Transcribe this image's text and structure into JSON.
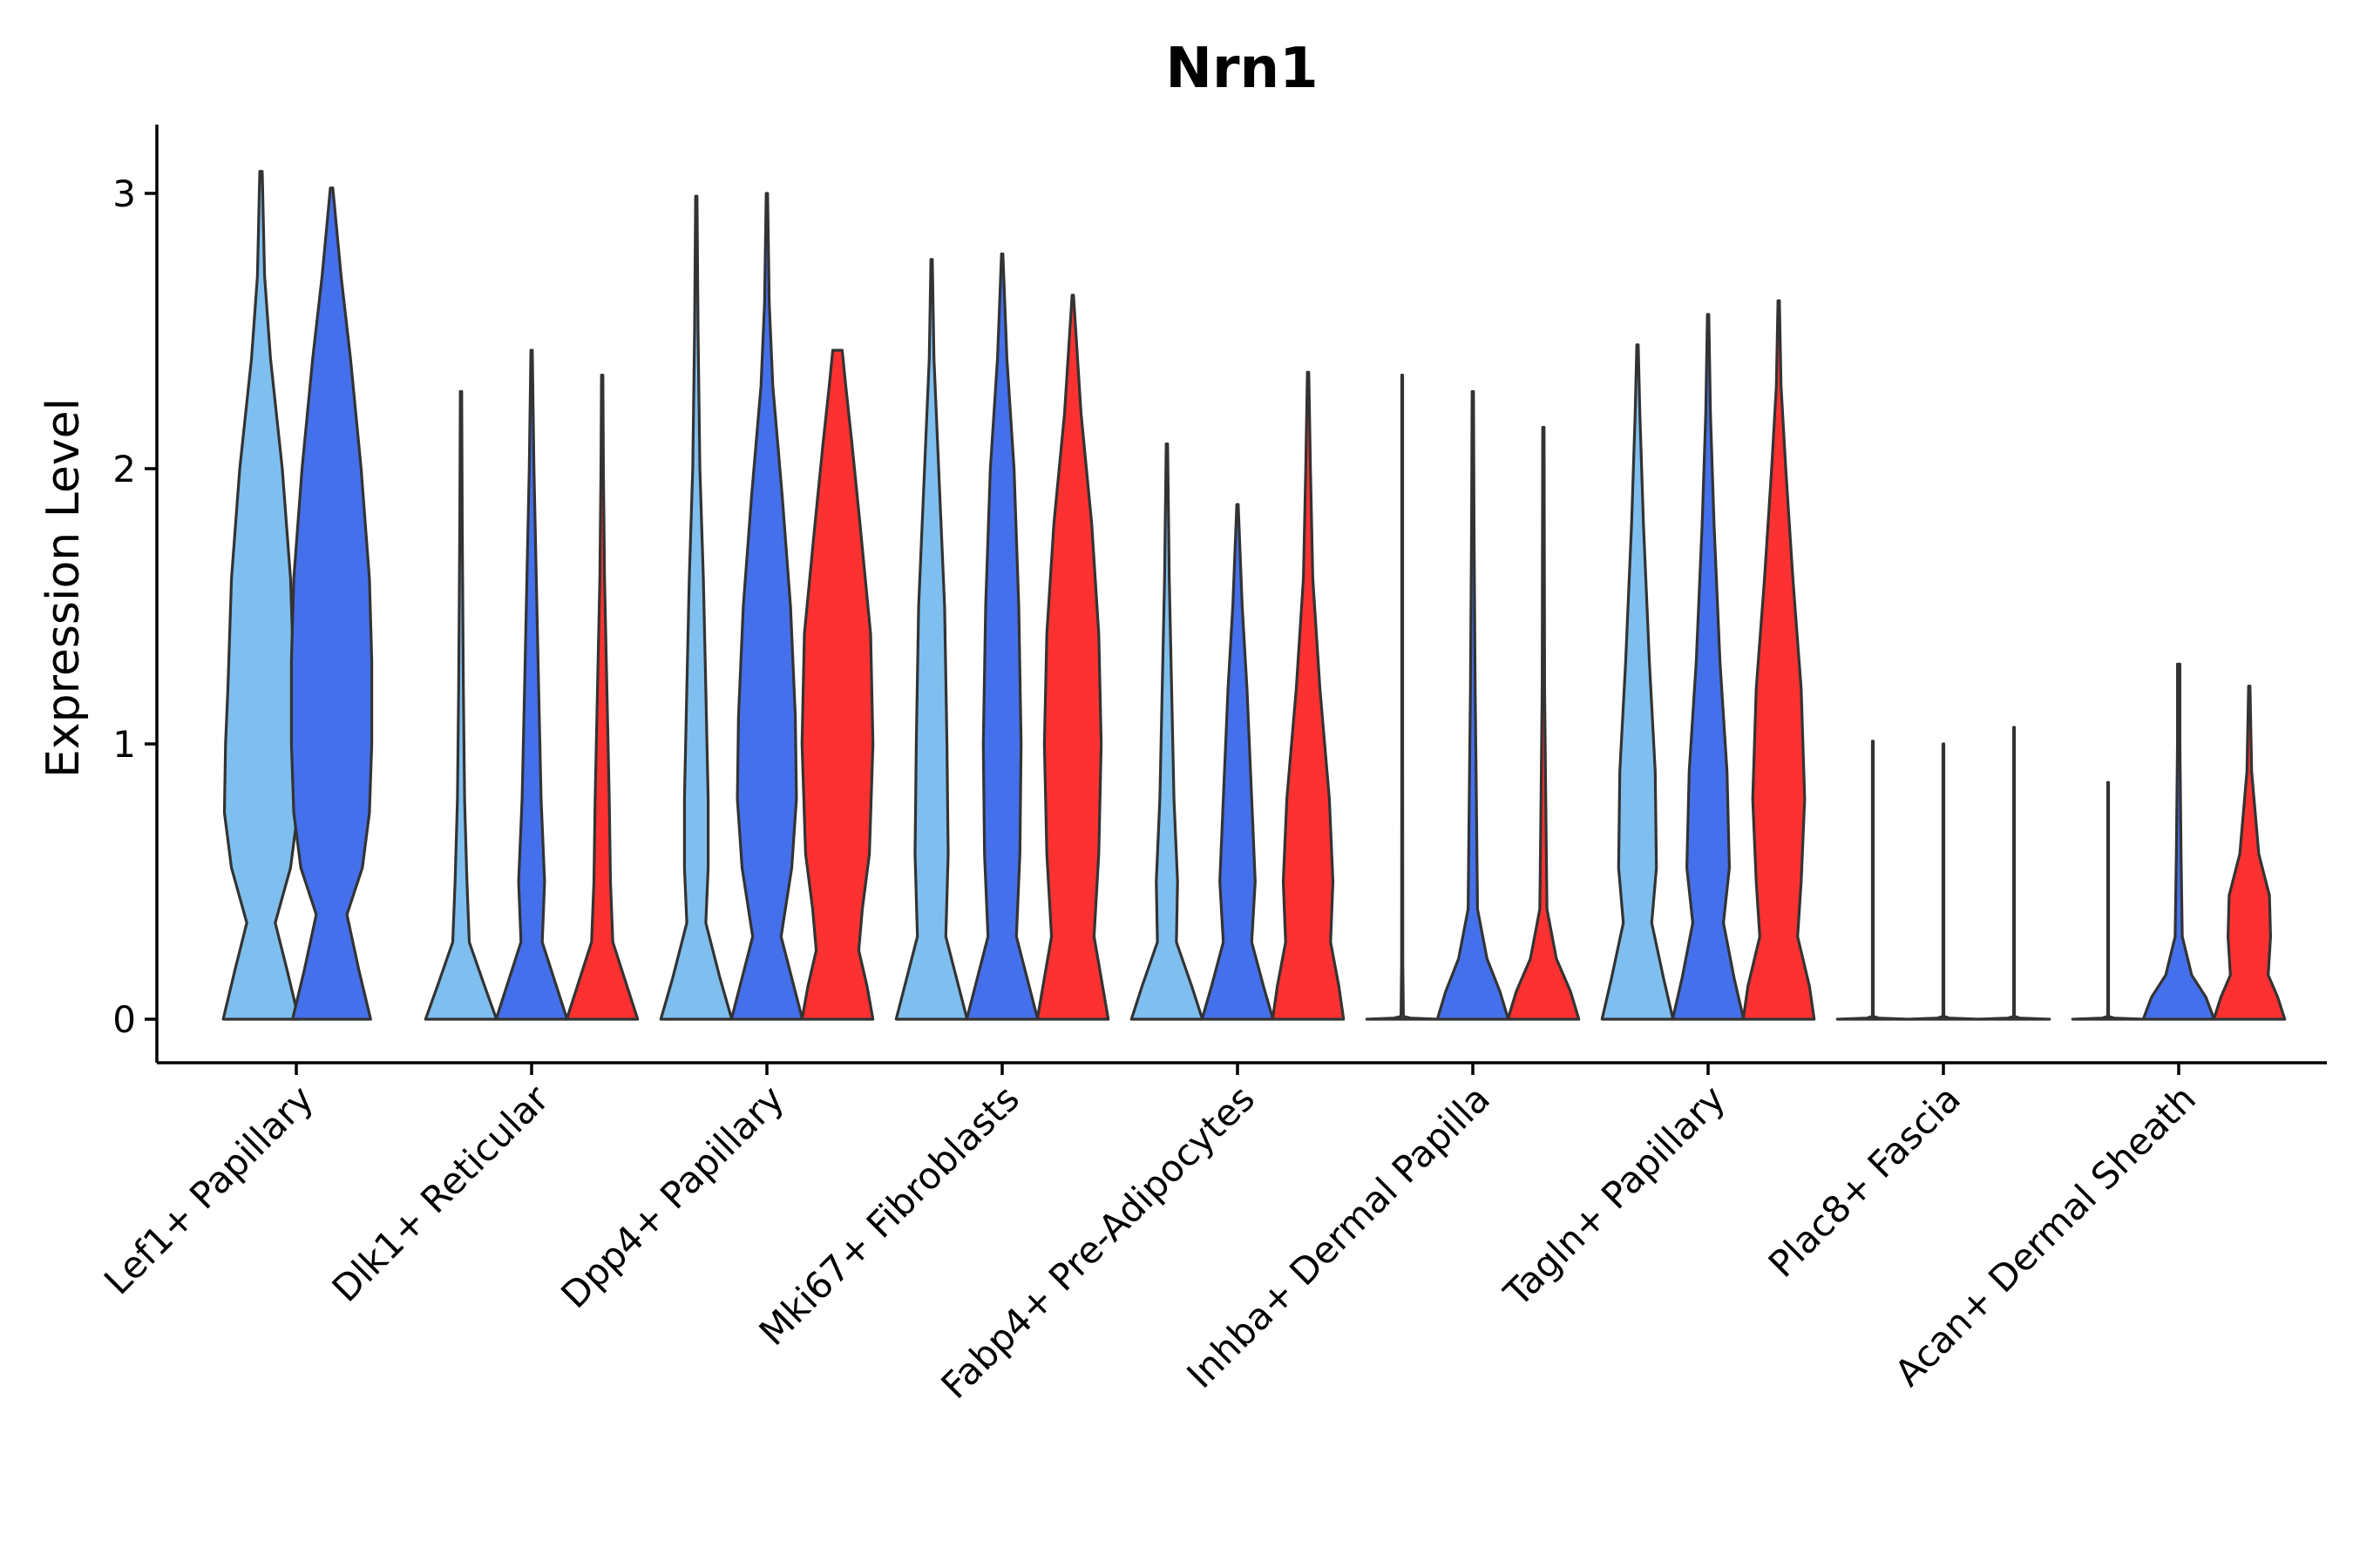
{
  "chart_data": {
    "type": "violin",
    "title": "Nrn1",
    "xlabel": "",
    "ylabel": "Expression Level",
    "ylim": [
      -0.16,
      3.25
    ],
    "yticks": [
      0,
      1,
      2,
      3
    ],
    "groups": [
      "Lef1+ Papillary",
      "Dlk1+ Reticular",
      "Dpp4+ Papillary",
      "Mki67+ Fibroblasts",
      "Fabp4+ Pre-Adipocytes",
      "Inhba+ Dermal Papilla",
      "Tagln+ Papillary",
      "Plac8+ Fascia",
      "Acan+ Dermal Sheath"
    ],
    "series_colors": [
      "#7fbfef",
      "#4570eb",
      "#fd3131"
    ],
    "violins": [
      [
        {
          "max": 3.08,
          "profile": [
            [
              0,
              0.32
            ],
            [
              0.18,
              0.22
            ],
            [
              0.35,
              0.12
            ],
            [
              0.55,
              0.25
            ],
            [
              0.75,
              0.31
            ],
            [
              1.0,
              0.3
            ],
            [
              1.2,
              0.28
            ],
            [
              1.6,
              0.25
            ],
            [
              2.0,
              0.18
            ],
            [
              2.4,
              0.08
            ],
            [
              2.7,
              0.03
            ],
            [
              3.08,
              0.01
            ]
          ]
        },
        {
          "max": 3.02,
          "profile": [
            [
              0,
              0.33
            ],
            [
              0.18,
              0.23
            ],
            [
              0.38,
              0.13
            ],
            [
              0.55,
              0.26
            ],
            [
              0.75,
              0.32
            ],
            [
              1.0,
              0.34
            ],
            [
              1.3,
              0.34
            ],
            [
              1.6,
              0.32
            ],
            [
              2.0,
              0.25
            ],
            [
              2.4,
              0.16
            ],
            [
              2.7,
              0.08
            ],
            [
              3.02,
              0.01
            ]
          ]
        },
        null
      ],
      [
        {
          "max": 2.28,
          "profile": [
            [
              0,
              0.3
            ],
            [
              0.12,
              0.2
            ],
            [
              0.28,
              0.07
            ],
            [
              0.5,
              0.05
            ],
            [
              0.8,
              0.03
            ],
            [
              1.2,
              0.02
            ],
            [
              1.8,
              0.01
            ],
            [
              2.28,
              0.006
            ]
          ]
        },
        {
          "max": 2.43,
          "profile": [
            [
              0,
              0.3
            ],
            [
              0.12,
              0.21
            ],
            [
              0.28,
              0.09
            ],
            [
              0.5,
              0.11
            ],
            [
              0.8,
              0.08
            ],
            [
              1.2,
              0.06
            ],
            [
              1.6,
              0.04
            ],
            [
              2.0,
              0.02
            ],
            [
              2.43,
              0.006
            ]
          ]
        },
        {
          "max": 2.34,
          "profile": [
            [
              0,
              0.3
            ],
            [
              0.12,
              0.21
            ],
            [
              0.28,
              0.09
            ],
            [
              0.5,
              0.07
            ],
            [
              0.8,
              0.06
            ],
            [
              1.2,
              0.04
            ],
            [
              1.6,
              0.02
            ],
            [
              2.0,
              0.01
            ],
            [
              2.34,
              0.006
            ]
          ]
        }
      ],
      [
        {
          "max": 2.99,
          "profile": [
            [
              0,
              0.3
            ],
            [
              0.15,
              0.2
            ],
            [
              0.35,
              0.08
            ],
            [
              0.55,
              0.1
            ],
            [
              0.8,
              0.1
            ],
            [
              1.2,
              0.08
            ],
            [
              1.6,
              0.06
            ],
            [
              2.0,
              0.03
            ],
            [
              2.5,
              0.015
            ],
            [
              2.99,
              0.006
            ]
          ]
        },
        {
          "max": 3.0,
          "profile": [
            [
              0,
              0.3
            ],
            [
              0.15,
              0.21
            ],
            [
              0.3,
              0.12
            ],
            [
              0.55,
              0.21
            ],
            [
              0.8,
              0.25
            ],
            [
              1.1,
              0.24
            ],
            [
              1.5,
              0.2
            ],
            [
              1.9,
              0.13
            ],
            [
              2.3,
              0.05
            ],
            [
              2.6,
              0.02
            ],
            [
              3.0,
              0.006
            ]
          ]
        },
        {
          "max": 2.43,
          "profile": [
            [
              0,
              0.3
            ],
            [
              0.12,
              0.25
            ],
            [
              0.25,
              0.18
            ],
            [
              0.4,
              0.21
            ],
            [
              0.6,
              0.27
            ],
            [
              1.0,
              0.3
            ],
            [
              1.4,
              0.28
            ],
            [
              1.8,
              0.19
            ],
            [
              2.1,
              0.12
            ],
            [
              2.3,
              0.07
            ],
            [
              2.43,
              0.04
            ]
          ]
        }
      ],
      [
        {
          "max": 2.76,
          "profile": [
            [
              0,
              0.3
            ],
            [
              0.15,
              0.21
            ],
            [
              0.3,
              0.12
            ],
            [
              0.6,
              0.14
            ],
            [
              1.0,
              0.13
            ],
            [
              1.5,
              0.11
            ],
            [
              2.0,
              0.06
            ],
            [
              2.4,
              0.02
            ],
            [
              2.76,
              0.006
            ]
          ]
        },
        {
          "max": 2.78,
          "profile": [
            [
              0,
              0.3
            ],
            [
              0.15,
              0.21
            ],
            [
              0.3,
              0.12
            ],
            [
              0.6,
              0.15
            ],
            [
              1.0,
              0.16
            ],
            [
              1.5,
              0.14
            ],
            [
              2.0,
              0.1
            ],
            [
              2.4,
              0.04
            ],
            [
              2.78,
              0.006
            ]
          ]
        },
        {
          "max": 2.63,
          "profile": [
            [
              0,
              0.3
            ],
            [
              0.15,
              0.24
            ],
            [
              0.3,
              0.18
            ],
            [
              0.6,
              0.22
            ],
            [
              1.0,
              0.24
            ],
            [
              1.4,
              0.22
            ],
            [
              1.8,
              0.16
            ],
            [
              2.2,
              0.07
            ],
            [
              2.63,
              0.006
            ]
          ]
        }
      ],
      [
        {
          "max": 2.09,
          "profile": [
            [
              0,
              0.3
            ],
            [
              0.12,
              0.21
            ],
            [
              0.28,
              0.08
            ],
            [
              0.5,
              0.09
            ],
            [
              0.8,
              0.06
            ],
            [
              1.2,
              0.04
            ],
            [
              1.6,
              0.02
            ],
            [
              2.09,
              0.006
            ]
          ]
        },
        {
          "max": 1.87,
          "profile": [
            [
              0,
              0.3
            ],
            [
              0.12,
              0.22
            ],
            [
              0.28,
              0.12
            ],
            [
              0.5,
              0.15
            ],
            [
              0.8,
              0.12
            ],
            [
              1.2,
              0.08
            ],
            [
              1.5,
              0.04
            ],
            [
              1.87,
              0.006
            ]
          ]
        },
        {
          "max": 2.35,
          "profile": [
            [
              0,
              0.3
            ],
            [
              0.12,
              0.26
            ],
            [
              0.28,
              0.19
            ],
            [
              0.5,
              0.21
            ],
            [
              0.8,
              0.18
            ],
            [
              1.2,
              0.1
            ],
            [
              1.6,
              0.04
            ],
            [
              2.0,
              0.02
            ],
            [
              2.35,
              0.006
            ]
          ]
        }
      ],
      [
        {
          "max": 2.34,
          "profile": [
            [
              0,
              0.3
            ],
            [
              0.004,
              0.07
            ],
            [
              0.01,
              0.01
            ],
            [
              0.2,
              0.005
            ],
            [
              1.0,
              0.004
            ],
            [
              2.34,
              0.004
            ]
          ]
        },
        {
          "max": 2.28,
          "profile": [
            [
              0,
              0.3
            ],
            [
              0.1,
              0.23
            ],
            [
              0.22,
              0.12
            ],
            [
              0.4,
              0.04
            ],
            [
              0.8,
              0.03
            ],
            [
              1.2,
              0.02
            ],
            [
              1.8,
              0.01
            ],
            [
              2.28,
              0.006
            ]
          ]
        },
        {
          "max": 2.15,
          "profile": [
            [
              0,
              0.3
            ],
            [
              0.1,
              0.23
            ],
            [
              0.22,
              0.11
            ],
            [
              0.4,
              0.03
            ],
            [
              0.8,
              0.02
            ],
            [
              1.2,
              0.01
            ],
            [
              2.15,
              0.006
            ]
          ]
        }
      ],
      [
        {
          "max": 2.45,
          "profile": [
            [
              0,
              0.3
            ],
            [
              0.15,
              0.22
            ],
            [
              0.35,
              0.12
            ],
            [
              0.55,
              0.16
            ],
            [
              0.9,
              0.15
            ],
            [
              1.3,
              0.1
            ],
            [
              1.8,
              0.05
            ],
            [
              2.2,
              0.02
            ],
            [
              2.45,
              0.006
            ]
          ]
        },
        {
          "max": 2.56,
          "profile": [
            [
              0,
              0.3
            ],
            [
              0.15,
              0.22
            ],
            [
              0.35,
              0.13
            ],
            [
              0.55,
              0.18
            ],
            [
              0.9,
              0.16
            ],
            [
              1.3,
              0.1
            ],
            [
              1.8,
              0.05
            ],
            [
              2.2,
              0.02
            ],
            [
              2.56,
              0.006
            ]
          ]
        },
        {
          "max": 2.61,
          "profile": [
            [
              0,
              0.3
            ],
            [
              0.12,
              0.26
            ],
            [
              0.3,
              0.16
            ],
            [
              0.5,
              0.19
            ],
            [
              0.8,
              0.22
            ],
            [
              1.2,
              0.19
            ],
            [
              1.6,
              0.12
            ],
            [
              2.0,
              0.06
            ],
            [
              2.3,
              0.02
            ],
            [
              2.61,
              0.006
            ]
          ]
        }
      ],
      [
        {
          "max": 1.01,
          "profile": [
            [
              0,
              0.3
            ],
            [
              0.004,
              0.05
            ],
            [
              0.01,
              0.004
            ],
            [
              1.01,
              0.004
            ]
          ]
        },
        {
          "max": 1.0,
          "profile": [
            [
              0,
              0.3
            ],
            [
              0.004,
              0.05
            ],
            [
              0.01,
              0.004
            ],
            [
              1.0,
              0.004
            ]
          ]
        },
        {
          "max": 1.06,
          "profile": [
            [
              0,
              0.3
            ],
            [
              0.004,
              0.05
            ],
            [
              0.01,
              0.004
            ],
            [
              1.06,
              0.004
            ]
          ]
        }
      ],
      [
        {
          "max": 0.86,
          "profile": [
            [
              0,
              0.3
            ],
            [
              0.004,
              0.05
            ],
            [
              0.01,
              0.004
            ],
            [
              0.86,
              0.004
            ]
          ]
        },
        {
          "max": 1.29,
          "profile": [
            [
              0,
              0.3
            ],
            [
              0.08,
              0.23
            ],
            [
              0.16,
              0.11
            ],
            [
              0.3,
              0.03
            ],
            [
              0.6,
              0.02
            ],
            [
              1.0,
              0.01
            ],
            [
              1.29,
              0.01
            ]
          ]
        },
        {
          "max": 1.21,
          "profile": [
            [
              0,
              0.3
            ],
            [
              0.08,
              0.24
            ],
            [
              0.16,
              0.16
            ],
            [
              0.3,
              0.18
            ],
            [
              0.45,
              0.17
            ],
            [
              0.6,
              0.08
            ],
            [
              0.9,
              0.02
            ],
            [
              1.21,
              0.006
            ]
          ]
        }
      ]
    ]
  }
}
